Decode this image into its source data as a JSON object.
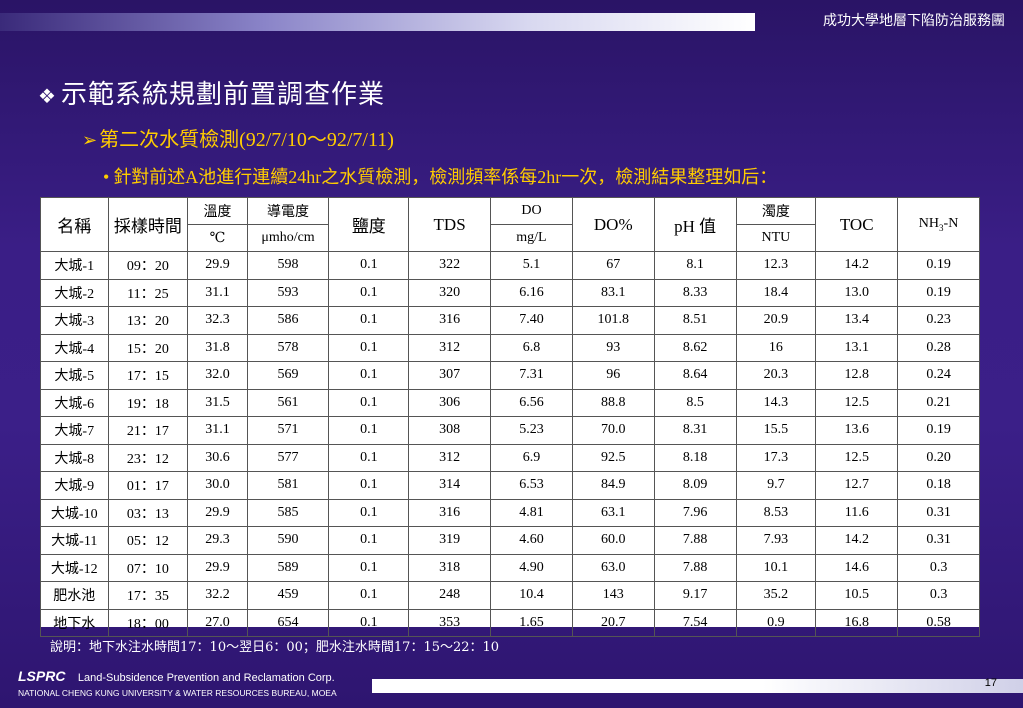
{
  "header": {
    "org": "成功大學地層下陷防治服務團"
  },
  "headings": {
    "h1_mark": "❖",
    "h1": "示範系統規劃前置調查作業",
    "h2_mark": "➢",
    "h2": "第二次水質檢測(92/7/10～92/7/11)",
    "h3_mark": "•",
    "h3": "針對前述A池進行連續24hr之水質檢測，檢測頻率係每2hr一次，檢測結果整理如后："
  },
  "table": {
    "headers": [
      {
        "top": "名稱",
        "bottom": "",
        "merged": true
      },
      {
        "top": "採樣時間",
        "bottom": "",
        "merged": true
      },
      {
        "top": "溫度",
        "bottom": "℃",
        "merged": false
      },
      {
        "top": "導電度",
        "bottom": "μmho/cm",
        "merged": false
      },
      {
        "top": "鹽度",
        "bottom": "",
        "merged": true
      },
      {
        "top": "TDS",
        "bottom": "",
        "merged": true
      },
      {
        "top": "DO",
        "bottom": "mg/L",
        "merged": false
      },
      {
        "top": "DO%",
        "bottom": "",
        "merged": true
      },
      {
        "top": "pH 值",
        "bottom": "",
        "merged": true
      },
      {
        "top": "濁度",
        "bottom": "NTU",
        "merged": false
      },
      {
        "top": "TOC",
        "bottom": "",
        "merged": true
      },
      {
        "top": "NH3-N",
        "bottom": "",
        "merged": true
      }
    ],
    "rows": [
      [
        "大城-1",
        "09：20",
        "29.9",
        "598",
        "0.1",
        "322",
        "5.1",
        "67",
        "8.1",
        "12.3",
        "14.2",
        "0.19"
      ],
      [
        "大城-2",
        "11：25",
        "31.1",
        "593",
        "0.1",
        "320",
        "6.16",
        "83.1",
        "8.33",
        "18.4",
        "13.0",
        "0.19"
      ],
      [
        "大城-3",
        "13：20",
        "32.3",
        "586",
        "0.1",
        "316",
        "7.40",
        "101.8",
        "8.51",
        "20.9",
        "13.4",
        "0.23"
      ],
      [
        "大城-4",
        "15：20",
        "31.8",
        "578",
        "0.1",
        "312",
        "6.8",
        "93",
        "8.62",
        "16",
        "13.1",
        "0.28"
      ],
      [
        "大城-5",
        "17：15",
        "32.0",
        "569",
        "0.1",
        "307",
        "7.31",
        "96",
        "8.64",
        "20.3",
        "12.8",
        "0.24"
      ],
      [
        "大城-6",
        "19：18",
        "31.5",
        "561",
        "0.1",
        "306",
        "6.56",
        "88.8",
        "8.5",
        "14.3",
        "12.5",
        "0.21"
      ],
      [
        "大城-7",
        "21：17",
        "31.1",
        "571",
        "0.1",
        "308",
        "5.23",
        "70.0",
        "8.31",
        "15.5",
        "13.6",
        "0.19"
      ],
      [
        "大城-8",
        "23：12",
        "30.6",
        "577",
        "0.1",
        "312",
        "6.9",
        "92.5",
        "8.18",
        "17.3",
        "12.5",
        "0.20"
      ],
      [
        "大城-9",
        "01：17",
        "30.0",
        "581",
        "0.1",
        "314",
        "6.53",
        "84.9",
        "8.09",
        "9.7",
        "12.7",
        "0.18"
      ],
      [
        "大城-10",
        "03：13",
        "29.9",
        "585",
        "0.1",
        "316",
        "4.81",
        "63.1",
        "7.96",
        "8.53",
        "11.6",
        "0.31"
      ],
      [
        "大城-11",
        "05：12",
        "29.3",
        "590",
        "0.1",
        "319",
        "4.60",
        "60.0",
        "7.88",
        "7.93",
        "14.2",
        "0.31"
      ],
      [
        "大城-12",
        "07：10",
        "29.9",
        "589",
        "0.1",
        "318",
        "4.90",
        "63.0",
        "7.88",
        "10.1",
        "14.6",
        "0.3"
      ],
      [
        "肥水池",
        "17：35",
        "32.2",
        "459",
        "0.1",
        "248",
        "10.4",
        "143",
        "9.17",
        "35.2",
        "10.5",
        "0.3"
      ],
      [
        "地下水",
        "18：00",
        "27.0",
        "654",
        "0.1",
        "353",
        "1.65",
        "20.7",
        "7.54",
        "0.9",
        "16.8",
        "0.58"
      ]
    ]
  },
  "note": "說明：地下水注水時間17：10～翌日6：00；肥水注水時間17：15～22：10",
  "footer": {
    "logo": "LSPRC",
    "corp": "Land-Subsidence Prevention and Reclamation Corp.",
    "sub": "NATIONAL CHENG KUNG UNIVERSITY & WATER RESOURCES BUREAU, MOEA",
    "page": "17"
  }
}
